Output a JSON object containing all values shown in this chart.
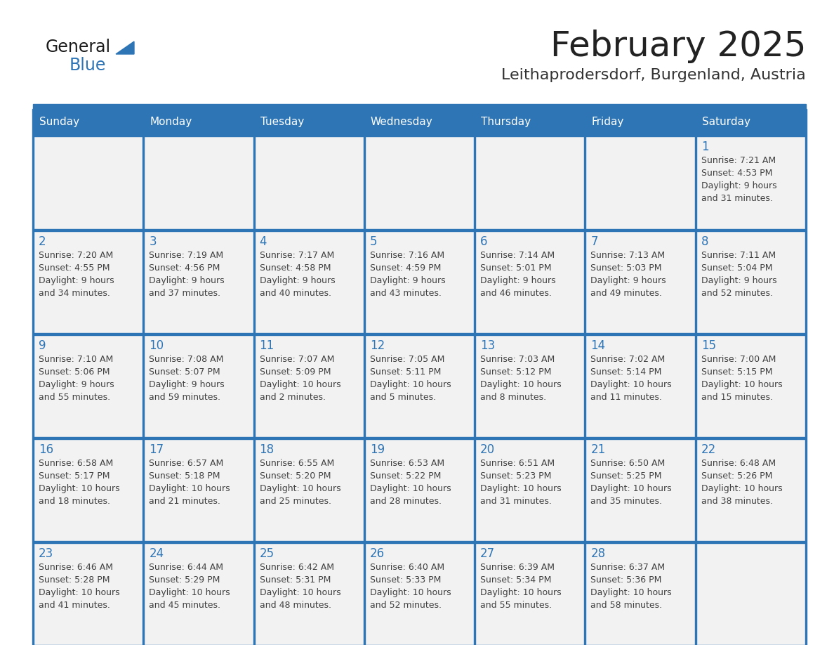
{
  "title": "February 2025",
  "subtitle": "Leithaprodersdorf, Burgenland, Austria",
  "days_of_week": [
    "Sunday",
    "Monday",
    "Tuesday",
    "Wednesday",
    "Thursday",
    "Friday",
    "Saturday"
  ],
  "header_bg_color": "#2E75B6",
  "header_text_color": "#FFFFFF",
  "cell_bg_color": "#F2F2F2",
  "grid_line_color": "#2E75B6",
  "day_number_color": "#2E75B6",
  "info_text_color": "#404040",
  "title_color": "#222222",
  "subtitle_color": "#333333",
  "logo_general_color": "#1a1a1a",
  "logo_blue_color": "#2E75B6",
  "calendar_data": [
    {
      "day": 1,
      "col": 6,
      "row": 0,
      "sunrise": "7:21 AM",
      "sunset": "4:53 PM",
      "daylight_hours": 9,
      "daylight_minutes": 31
    },
    {
      "day": 2,
      "col": 0,
      "row": 1,
      "sunrise": "7:20 AM",
      "sunset": "4:55 PM",
      "daylight_hours": 9,
      "daylight_minutes": 34
    },
    {
      "day": 3,
      "col": 1,
      "row": 1,
      "sunrise": "7:19 AM",
      "sunset": "4:56 PM",
      "daylight_hours": 9,
      "daylight_minutes": 37
    },
    {
      "day": 4,
      "col": 2,
      "row": 1,
      "sunrise": "7:17 AM",
      "sunset": "4:58 PM",
      "daylight_hours": 9,
      "daylight_minutes": 40
    },
    {
      "day": 5,
      "col": 3,
      "row": 1,
      "sunrise": "7:16 AM",
      "sunset": "4:59 PM",
      "daylight_hours": 9,
      "daylight_minutes": 43
    },
    {
      "day": 6,
      "col": 4,
      "row": 1,
      "sunrise": "7:14 AM",
      "sunset": "5:01 PM",
      "daylight_hours": 9,
      "daylight_minutes": 46
    },
    {
      "day": 7,
      "col": 5,
      "row": 1,
      "sunrise": "7:13 AM",
      "sunset": "5:03 PM",
      "daylight_hours": 9,
      "daylight_minutes": 49
    },
    {
      "day": 8,
      "col": 6,
      "row": 1,
      "sunrise": "7:11 AM",
      "sunset": "5:04 PM",
      "daylight_hours": 9,
      "daylight_minutes": 52
    },
    {
      "day": 9,
      "col": 0,
      "row": 2,
      "sunrise": "7:10 AM",
      "sunset": "5:06 PM",
      "daylight_hours": 9,
      "daylight_minutes": 55
    },
    {
      "day": 10,
      "col": 1,
      "row": 2,
      "sunrise": "7:08 AM",
      "sunset": "5:07 PM",
      "daylight_hours": 9,
      "daylight_minutes": 59
    },
    {
      "day": 11,
      "col": 2,
      "row": 2,
      "sunrise": "7:07 AM",
      "sunset": "5:09 PM",
      "daylight_hours": 10,
      "daylight_minutes": 2
    },
    {
      "day": 12,
      "col": 3,
      "row": 2,
      "sunrise": "7:05 AM",
      "sunset": "5:11 PM",
      "daylight_hours": 10,
      "daylight_minutes": 5
    },
    {
      "day": 13,
      "col": 4,
      "row": 2,
      "sunrise": "7:03 AM",
      "sunset": "5:12 PM",
      "daylight_hours": 10,
      "daylight_minutes": 8
    },
    {
      "day": 14,
      "col": 5,
      "row": 2,
      "sunrise": "7:02 AM",
      "sunset": "5:14 PM",
      "daylight_hours": 10,
      "daylight_minutes": 11
    },
    {
      "day": 15,
      "col": 6,
      "row": 2,
      "sunrise": "7:00 AM",
      "sunset": "5:15 PM",
      "daylight_hours": 10,
      "daylight_minutes": 15
    },
    {
      "day": 16,
      "col": 0,
      "row": 3,
      "sunrise": "6:58 AM",
      "sunset": "5:17 PM",
      "daylight_hours": 10,
      "daylight_minutes": 18
    },
    {
      "day": 17,
      "col": 1,
      "row": 3,
      "sunrise": "6:57 AM",
      "sunset": "5:18 PM",
      "daylight_hours": 10,
      "daylight_minutes": 21
    },
    {
      "day": 18,
      "col": 2,
      "row": 3,
      "sunrise": "6:55 AM",
      "sunset": "5:20 PM",
      "daylight_hours": 10,
      "daylight_minutes": 25
    },
    {
      "day": 19,
      "col": 3,
      "row": 3,
      "sunrise": "6:53 AM",
      "sunset": "5:22 PM",
      "daylight_hours": 10,
      "daylight_minutes": 28
    },
    {
      "day": 20,
      "col": 4,
      "row": 3,
      "sunrise": "6:51 AM",
      "sunset": "5:23 PM",
      "daylight_hours": 10,
      "daylight_minutes": 31
    },
    {
      "day": 21,
      "col": 5,
      "row": 3,
      "sunrise": "6:50 AM",
      "sunset": "5:25 PM",
      "daylight_hours": 10,
      "daylight_minutes": 35
    },
    {
      "day": 22,
      "col": 6,
      "row": 3,
      "sunrise": "6:48 AM",
      "sunset": "5:26 PM",
      "daylight_hours": 10,
      "daylight_minutes": 38
    },
    {
      "day": 23,
      "col": 0,
      "row": 4,
      "sunrise": "6:46 AM",
      "sunset": "5:28 PM",
      "daylight_hours": 10,
      "daylight_minutes": 41
    },
    {
      "day": 24,
      "col": 1,
      "row": 4,
      "sunrise": "6:44 AM",
      "sunset": "5:29 PM",
      "daylight_hours": 10,
      "daylight_minutes": 45
    },
    {
      "day": 25,
      "col": 2,
      "row": 4,
      "sunrise": "6:42 AM",
      "sunset": "5:31 PM",
      "daylight_hours": 10,
      "daylight_minutes": 48
    },
    {
      "day": 26,
      "col": 3,
      "row": 4,
      "sunrise": "6:40 AM",
      "sunset": "5:33 PM",
      "daylight_hours": 10,
      "daylight_minutes": 52
    },
    {
      "day": 27,
      "col": 4,
      "row": 4,
      "sunrise": "6:39 AM",
      "sunset": "5:34 PM",
      "daylight_hours": 10,
      "daylight_minutes": 55
    },
    {
      "day": 28,
      "col": 5,
      "row": 4,
      "sunrise": "6:37 AM",
      "sunset": "5:36 PM",
      "daylight_hours": 10,
      "daylight_minutes": 58
    }
  ]
}
